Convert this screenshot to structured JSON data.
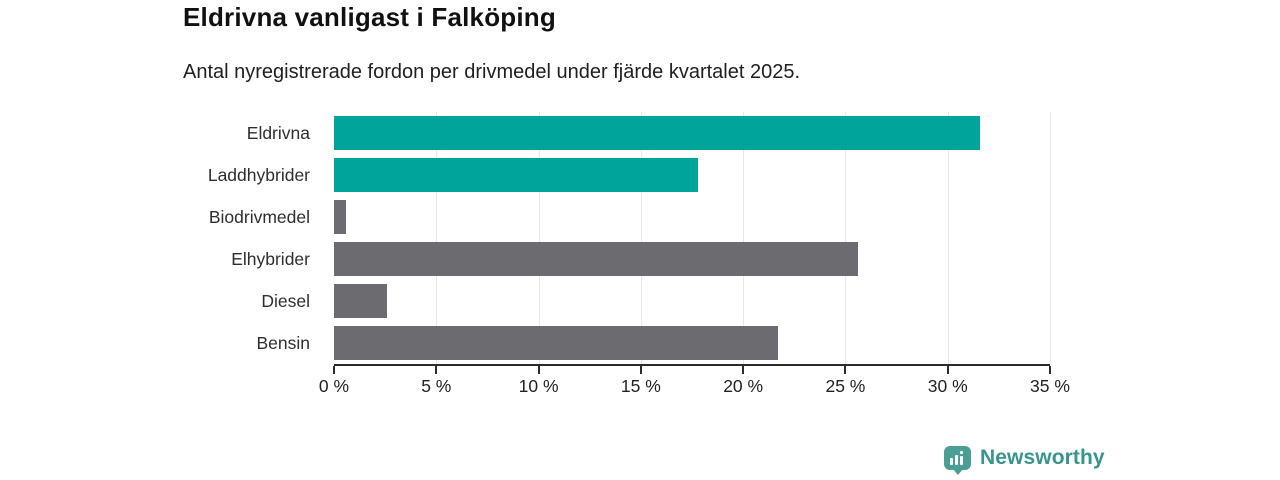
{
  "header": {
    "title": "Eldrivna vanligast i Falköping",
    "subtitle": "Antal nyregistrerade fordon per drivmedel under fjärde kvartalet 2025."
  },
  "chart_data": {
    "type": "bar",
    "orientation": "horizontal",
    "title": "Eldrivna vanligast i Falköping",
    "subtitle": "Antal nyregistrerade fordon per drivmedel under fjärde kvartalet 2025.",
    "categories": [
      "Eldrivna",
      "Laddhybrider",
      "Biodrivmedel",
      "Elhybrider",
      "Diesel",
      "Bensin"
    ],
    "values": [
      31.6,
      17.8,
      0.6,
      25.6,
      2.6,
      21.7
    ],
    "unit": "%",
    "bar_colors": [
      "#00a49b",
      "#00a49b",
      "#6c6c70",
      "#6c6c70",
      "#6c6c70",
      "#6c6c70"
    ],
    "xlabel": "",
    "ylabel": "",
    "xlim": [
      0,
      35
    ],
    "x_ticks": [
      0,
      5,
      10,
      15,
      20,
      25,
      30,
      35
    ],
    "x_tick_labels": [
      "0 %",
      "5 %",
      "10 %",
      "15 %",
      "20 %",
      "25 %",
      "30 %",
      "35 %"
    ],
    "grid": "vertical",
    "legend": "none"
  },
  "branding": {
    "logo_text": "Newsworthy",
    "logo_icon": "bar-chart-speech-bubble-icon"
  },
  "colors": {
    "accent_teal": "#00a49b",
    "bar_gray": "#6c6c70",
    "gridline": "#e8e8e8",
    "axis": "#2b2b2b",
    "logo_teal": "#4b9e94",
    "logo_text_teal": "#39948c",
    "background": "#ffffff"
  }
}
